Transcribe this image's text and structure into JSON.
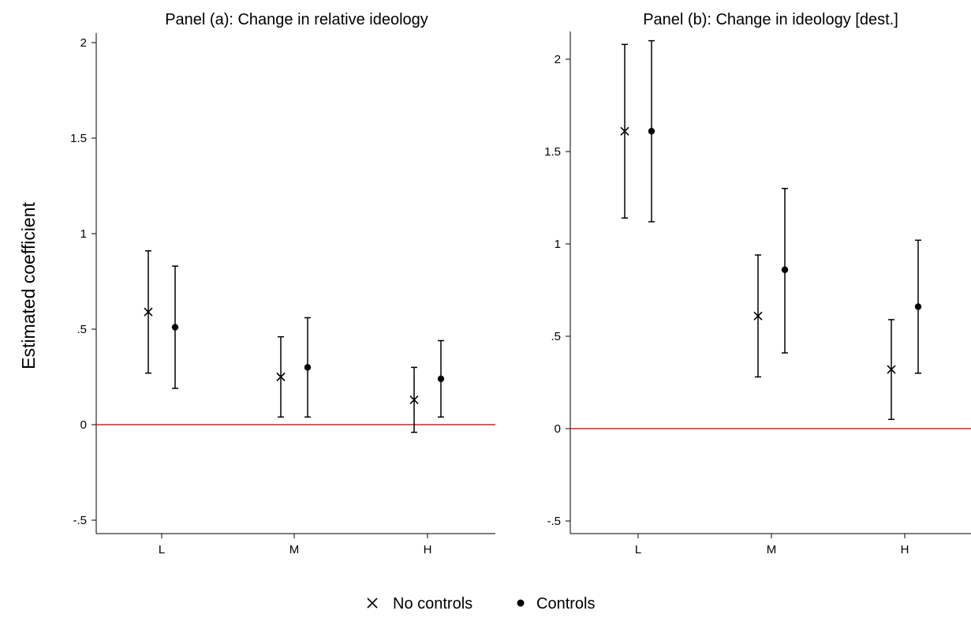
{
  "chart_data": {
    "type": "scatter",
    "ylabel": "Estimated coefficient",
    "legend": {
      "position": "bottom-center",
      "entries": [
        {
          "label": "No controls",
          "marker": "x"
        },
        {
          "label": "Controls",
          "marker": "dot"
        }
      ]
    },
    "reference_line": {
      "y": 0,
      "color": "#e02020"
    },
    "grid": false,
    "panels": [
      {
        "title": "Panel (a): Change in relative ideology",
        "categories": [
          "L",
          "M",
          "H"
        ],
        "ylim": [
          -0.55,
          2.05
        ],
        "yticks": [
          {
            "value": -0.5,
            "label": "-.5"
          },
          {
            "value": 0,
            "label": "0"
          },
          {
            "value": 0.5,
            "label": ".5"
          },
          {
            "value": 1,
            "label": "1"
          },
          {
            "value": 1.5,
            "label": "1.5"
          },
          {
            "value": 2,
            "label": "2"
          }
        ],
        "series": [
          {
            "name": "No controls",
            "marker": "x",
            "points": [
              {
                "category": "L",
                "estimate": 0.59,
                "ci_low": 0.27,
                "ci_high": 0.91
              },
              {
                "category": "M",
                "estimate": 0.25,
                "ci_low": 0.04,
                "ci_high": 0.46
              },
              {
                "category": "H",
                "estimate": 0.13,
                "ci_low": -0.04,
                "ci_high": 0.3
              }
            ]
          },
          {
            "name": "Controls",
            "marker": "dot",
            "points": [
              {
                "category": "L",
                "estimate": 0.51,
                "ci_low": 0.19,
                "ci_high": 0.83
              },
              {
                "category": "M",
                "estimate": 0.3,
                "ci_low": 0.04,
                "ci_high": 0.56
              },
              {
                "category": "H",
                "estimate": 0.24,
                "ci_low": 0.04,
                "ci_high": 0.44
              }
            ]
          }
        ]
      },
      {
        "title": "Panel (b): Change in ideology [dest.]",
        "categories": [
          "L",
          "M",
          "H"
        ],
        "ylim": [
          -0.55,
          2.15
        ],
        "yticks": [
          {
            "value": -0.5,
            "label": "-.5"
          },
          {
            "value": 0,
            "label": "0"
          },
          {
            "value": 0.5,
            "label": ".5"
          },
          {
            "value": 1,
            "label": "1"
          },
          {
            "value": 1.5,
            "label": "1.5"
          },
          {
            "value": 2,
            "label": "2"
          }
        ],
        "series": [
          {
            "name": "No controls",
            "marker": "x",
            "points": [
              {
                "category": "L",
                "estimate": 1.61,
                "ci_low": 1.14,
                "ci_high": 2.08
              },
              {
                "category": "M",
                "estimate": 0.61,
                "ci_low": 0.28,
                "ci_high": 0.94
              },
              {
                "category": "H",
                "estimate": 0.32,
                "ci_low": 0.05,
                "ci_high": 0.59
              }
            ]
          },
          {
            "name": "Controls",
            "marker": "dot",
            "points": [
              {
                "category": "L",
                "estimate": 1.61,
                "ci_low": 1.12,
                "ci_high": 2.1
              },
              {
                "category": "M",
                "estimate": 0.86,
                "ci_low": 0.41,
                "ci_high": 1.3
              },
              {
                "category": "H",
                "estimate": 0.66,
                "ci_low": 0.3,
                "ci_high": 1.02
              }
            ]
          }
        ]
      }
    ]
  }
}
